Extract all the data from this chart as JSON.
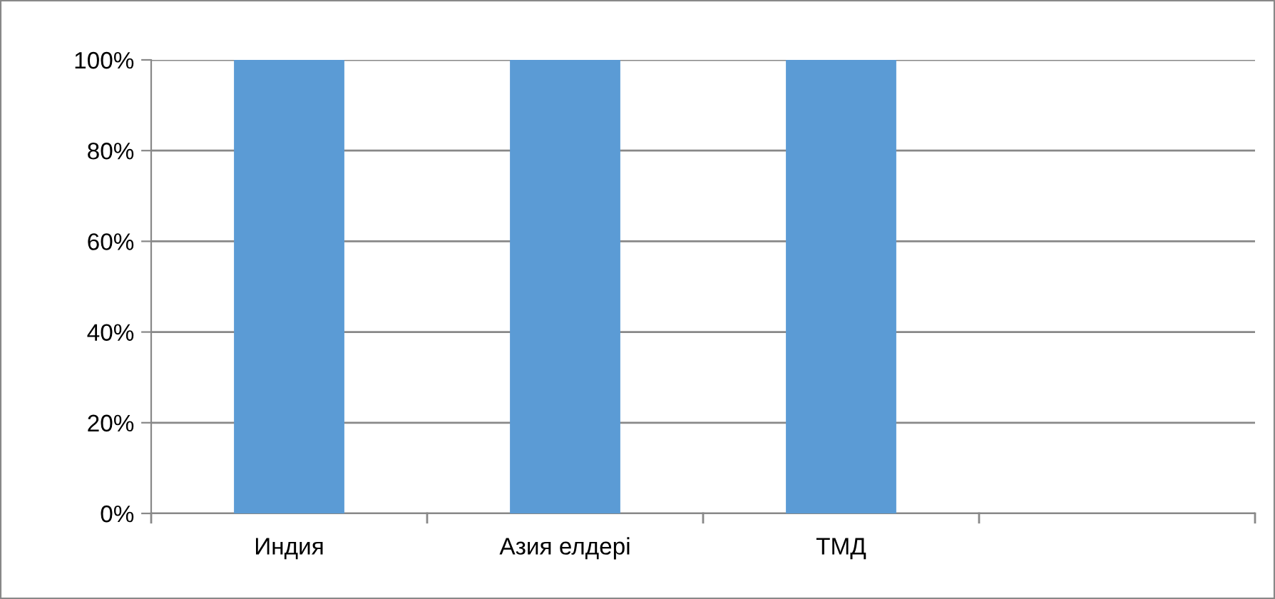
{
  "chart_data": {
    "type": "bar",
    "categories": [
      "Индия",
      "Азия елдері",
      "ТМД",
      null
    ],
    "values": [
      100,
      100,
      100,
      null
    ],
    "color": "#5b9bd5",
    "ylim": [
      0,
      100
    ],
    "yticks": [
      {
        "value": 0,
        "label": "0%"
      },
      {
        "value": 20,
        "label": "20%"
      },
      {
        "value": 40,
        "label": "40%"
      },
      {
        "value": 60,
        "label": "60%"
      },
      {
        "value": 80,
        "label": "80%"
      },
      {
        "value": 100,
        "label": "100%"
      }
    ],
    "grid": "y"
  }
}
